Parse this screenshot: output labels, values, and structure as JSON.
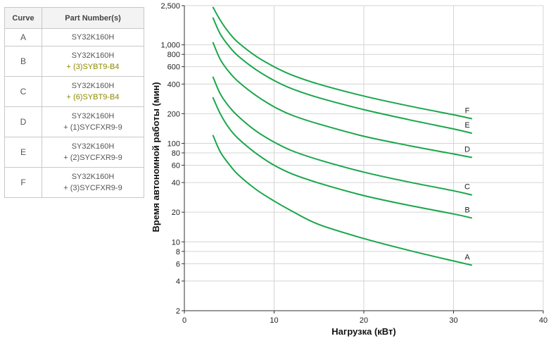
{
  "table": {
    "headers": [
      "Curve",
      "Part Number(s)"
    ],
    "rows": [
      {
        "curve": "A",
        "line1": "SY32K160H",
        "line2": ""
      },
      {
        "curve": "B",
        "line1": "SY32K160H",
        "line2": "+ (3)SYBT9-B4"
      },
      {
        "curve": "C",
        "line1": "SY32K160H",
        "line2": "+ (6)SYBT9-B4"
      },
      {
        "curve": "D",
        "line1": "SY32K160H",
        "line2": "+ (1)SYCFXR9-9"
      },
      {
        "curve": "E",
        "line1": "SY32K160H",
        "line2": "+ (2)SYCFXR9-9"
      },
      {
        "curve": "F",
        "line1": "SY32K160H",
        "line2": "+ (3)SYCFXR9-9"
      }
    ]
  },
  "chart_data": {
    "type": "line",
    "xlabel": "Нагрузка (кВт)",
    "ylabel": "Время автономной работы (мин)",
    "xlim": [
      0,
      40
    ],
    "ylim": [
      2,
      2500
    ],
    "yscale": "log",
    "xticks": [
      0,
      10,
      20,
      30,
      40
    ],
    "xtick_labels": [
      "0",
      "10",
      "20",
      "30",
      "40"
    ],
    "yticks": [
      2,
      4,
      6,
      8,
      10,
      20,
      40,
      60,
      80,
      100,
      200,
      400,
      600,
      800,
      1000,
      2500
    ],
    "ytick_labels": [
      "2",
      "4",
      "6",
      "8",
      "10",
      "20",
      "40",
      "60",
      "80",
      "100",
      "200",
      "400",
      "600",
      "800",
      "1,000",
      "2,500"
    ],
    "grid": true,
    "line_color": "#1aa64a",
    "x": [
      3.2,
      4,
      5,
      6,
      8,
      10,
      12,
      15,
      20,
      25,
      30,
      32
    ],
    "series": [
      {
        "label": "A",
        "values": [
          120,
          82,
          61,
          48,
          34,
          26,
          20.5,
          15,
          10.8,
          8.2,
          6.4,
          5.8
        ]
      },
      {
        "label": "B",
        "values": [
          290,
          200,
          142,
          112,
          79,
          60,
          49,
          39.5,
          29.5,
          23.5,
          19.2,
          17.5
        ]
      },
      {
        "label": "C",
        "values": [
          470,
          318,
          235,
          188,
          133,
          103,
          84,
          68,
          51,
          40.5,
          33,
          30
        ]
      },
      {
        "label": "D",
        "values": [
          1050,
          712,
          528,
          424,
          305,
          235,
          193,
          157,
          118,
          95,
          78,
          72
        ]
      },
      {
        "label": "E",
        "values": [
          1870,
          1290,
          962,
          770,
          558,
          435,
          358,
          290,
          220,
          174,
          140,
          127
        ]
      },
      {
        "label": "F",
        "values": [
          2400,
          1780,
          1320,
          1055,
          765,
          600,
          493,
          398,
          302,
          240,
          195,
          178
        ]
      }
    ]
  }
}
